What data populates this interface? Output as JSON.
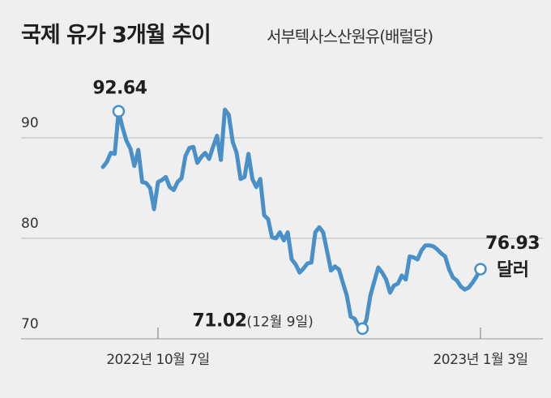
{
  "chart_data": {
    "type": "line",
    "title": "국제 유가 3개월 추이",
    "subtitle": "서부텍사스산원유(배럴당)",
    "ylim": [
      70,
      95
    ],
    "yticks": [
      70,
      80,
      90
    ],
    "grid": true,
    "x_tick_labels": [
      {
        "x": 14,
        "label": "2022년 10월 7일"
      },
      {
        "x": 96,
        "label": "2023년 1월 3일"
      }
    ],
    "series": [
      {
        "color": "#4a90c8",
        "x": [
          0,
          1,
          2,
          3,
          4,
          5,
          6,
          7,
          8,
          9,
          10,
          11,
          12,
          13,
          14,
          15,
          16,
          17,
          18,
          19,
          20,
          21,
          22,
          23,
          24,
          25,
          26,
          27,
          28,
          29,
          30,
          31,
          32,
          33,
          34,
          35,
          36,
          37,
          38,
          39,
          40,
          41,
          42,
          43,
          44,
          45,
          46,
          47,
          48,
          49,
          50,
          51,
          52,
          53,
          54,
          55,
          56,
          57,
          58,
          59,
          60,
          61,
          62,
          63,
          64,
          65,
          66,
          67,
          68,
          69,
          70,
          71,
          72,
          73,
          74,
          75,
          76,
          77,
          78,
          79,
          80,
          81,
          82,
          83,
          84,
          85,
          86,
          87,
          88,
          89,
          90,
          91,
          92,
          93,
          94,
          95,
          96
        ],
        "values": [
          87.1,
          87.6,
          88.5,
          88.4,
          92.64,
          91.0,
          89.7,
          88.9,
          87.2,
          88.8,
          85.6,
          85.5,
          85.0,
          82.9,
          85.6,
          85.8,
          86.1,
          85.1,
          84.8,
          85.6,
          86.0,
          88.2,
          89.0,
          89.1,
          87.5,
          88.1,
          88.5,
          87.9,
          89.1,
          90.2,
          87.8,
          92.8,
          92.3,
          89.6,
          88.5,
          85.9,
          86.1,
          88.4,
          85.9,
          85.1,
          85.9,
          82.3,
          81.9,
          80.1,
          80.0,
          80.6,
          79.8,
          80.6,
          77.9,
          77.4,
          76.6,
          77.0,
          77.5,
          77.6,
          80.6,
          81.1,
          80.6,
          78.7,
          76.8,
          77.2,
          76.9,
          75.6,
          74.3,
          72.2,
          72.0,
          71.2,
          71.02,
          71.9,
          74.3,
          75.7,
          77.1,
          76.6,
          75.9,
          74.6,
          75.3,
          75.5,
          76.3,
          75.9,
          78.2,
          78.1,
          77.9,
          78.8,
          79.3,
          79.3,
          79.2,
          78.9,
          78.5,
          78.2,
          76.93,
          76.1,
          75.8,
          75.2,
          74.9,
          75.1,
          75.6,
          76.2,
          76.93
        ]
      }
    ],
    "annotations": {
      "high": {
        "x": 4,
        "value": "92.64"
      },
      "low": {
        "x": 66,
        "value": "71.02",
        "note": "(12월 9일)"
      },
      "last": {
        "x": 96,
        "value": "76.93",
        "unit": "달러"
      }
    }
  }
}
